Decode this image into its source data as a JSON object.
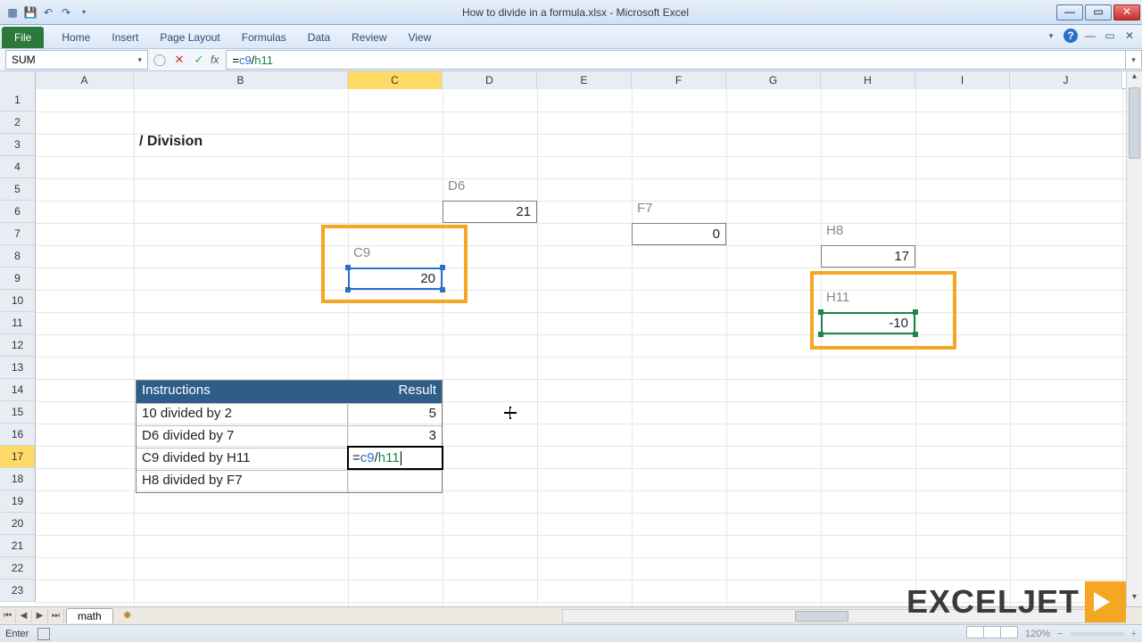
{
  "window": {
    "title": "How to divide in a formula.xlsx - Microsoft Excel"
  },
  "ribbon": {
    "file": "File",
    "tabs": [
      "Home",
      "Insert",
      "Page Layout",
      "Formulas",
      "Data",
      "Review",
      "View"
    ]
  },
  "formula_bar": {
    "name_box": "SUM",
    "formula_plain": "=c9/h11",
    "ref1": "c9",
    "ref2": "h11"
  },
  "columns": {
    "corner_width": 40,
    "headers": [
      "A",
      "B",
      "C",
      "D",
      "E",
      "F",
      "G",
      "H",
      "I",
      "J"
    ],
    "widths": [
      110,
      240,
      106,
      106,
      106,
      106,
      106,
      106,
      106,
      126
    ],
    "active": "C"
  },
  "rows": {
    "count": 23,
    "height": 25,
    "active": 17
  },
  "content": {
    "heading": "/ Division",
    "boxes": {
      "d6": {
        "label": "D6",
        "value": "21"
      },
      "f7": {
        "label": "F7",
        "value": "0"
      },
      "h8": {
        "label": "H8",
        "value": "17"
      },
      "c9": {
        "label": "C9",
        "value": "20"
      },
      "h11": {
        "label": "H11",
        "value": "-10"
      }
    },
    "table": {
      "h1": "Instructions",
      "h2": "Result",
      "rows": [
        {
          "instr": "10 divided by 2",
          "result": "5"
        },
        {
          "instr": "D6 divided by 7",
          "result": "3"
        },
        {
          "instr": "C9 divided by H11",
          "result": ""
        },
        {
          "instr": "H8 divided by F7",
          "result": ""
        }
      ]
    },
    "editing": {
      "ref1": "c9",
      "ref2": "h11"
    }
  },
  "highlight_color": "#f5a623",
  "ref_colors": {
    "c9": "#2a6fc9",
    "h11": "#1e8449"
  },
  "sheet_tab": "math",
  "status": {
    "mode": "Enter",
    "zoom": "120%"
  },
  "watermark": "EXCELJET"
}
